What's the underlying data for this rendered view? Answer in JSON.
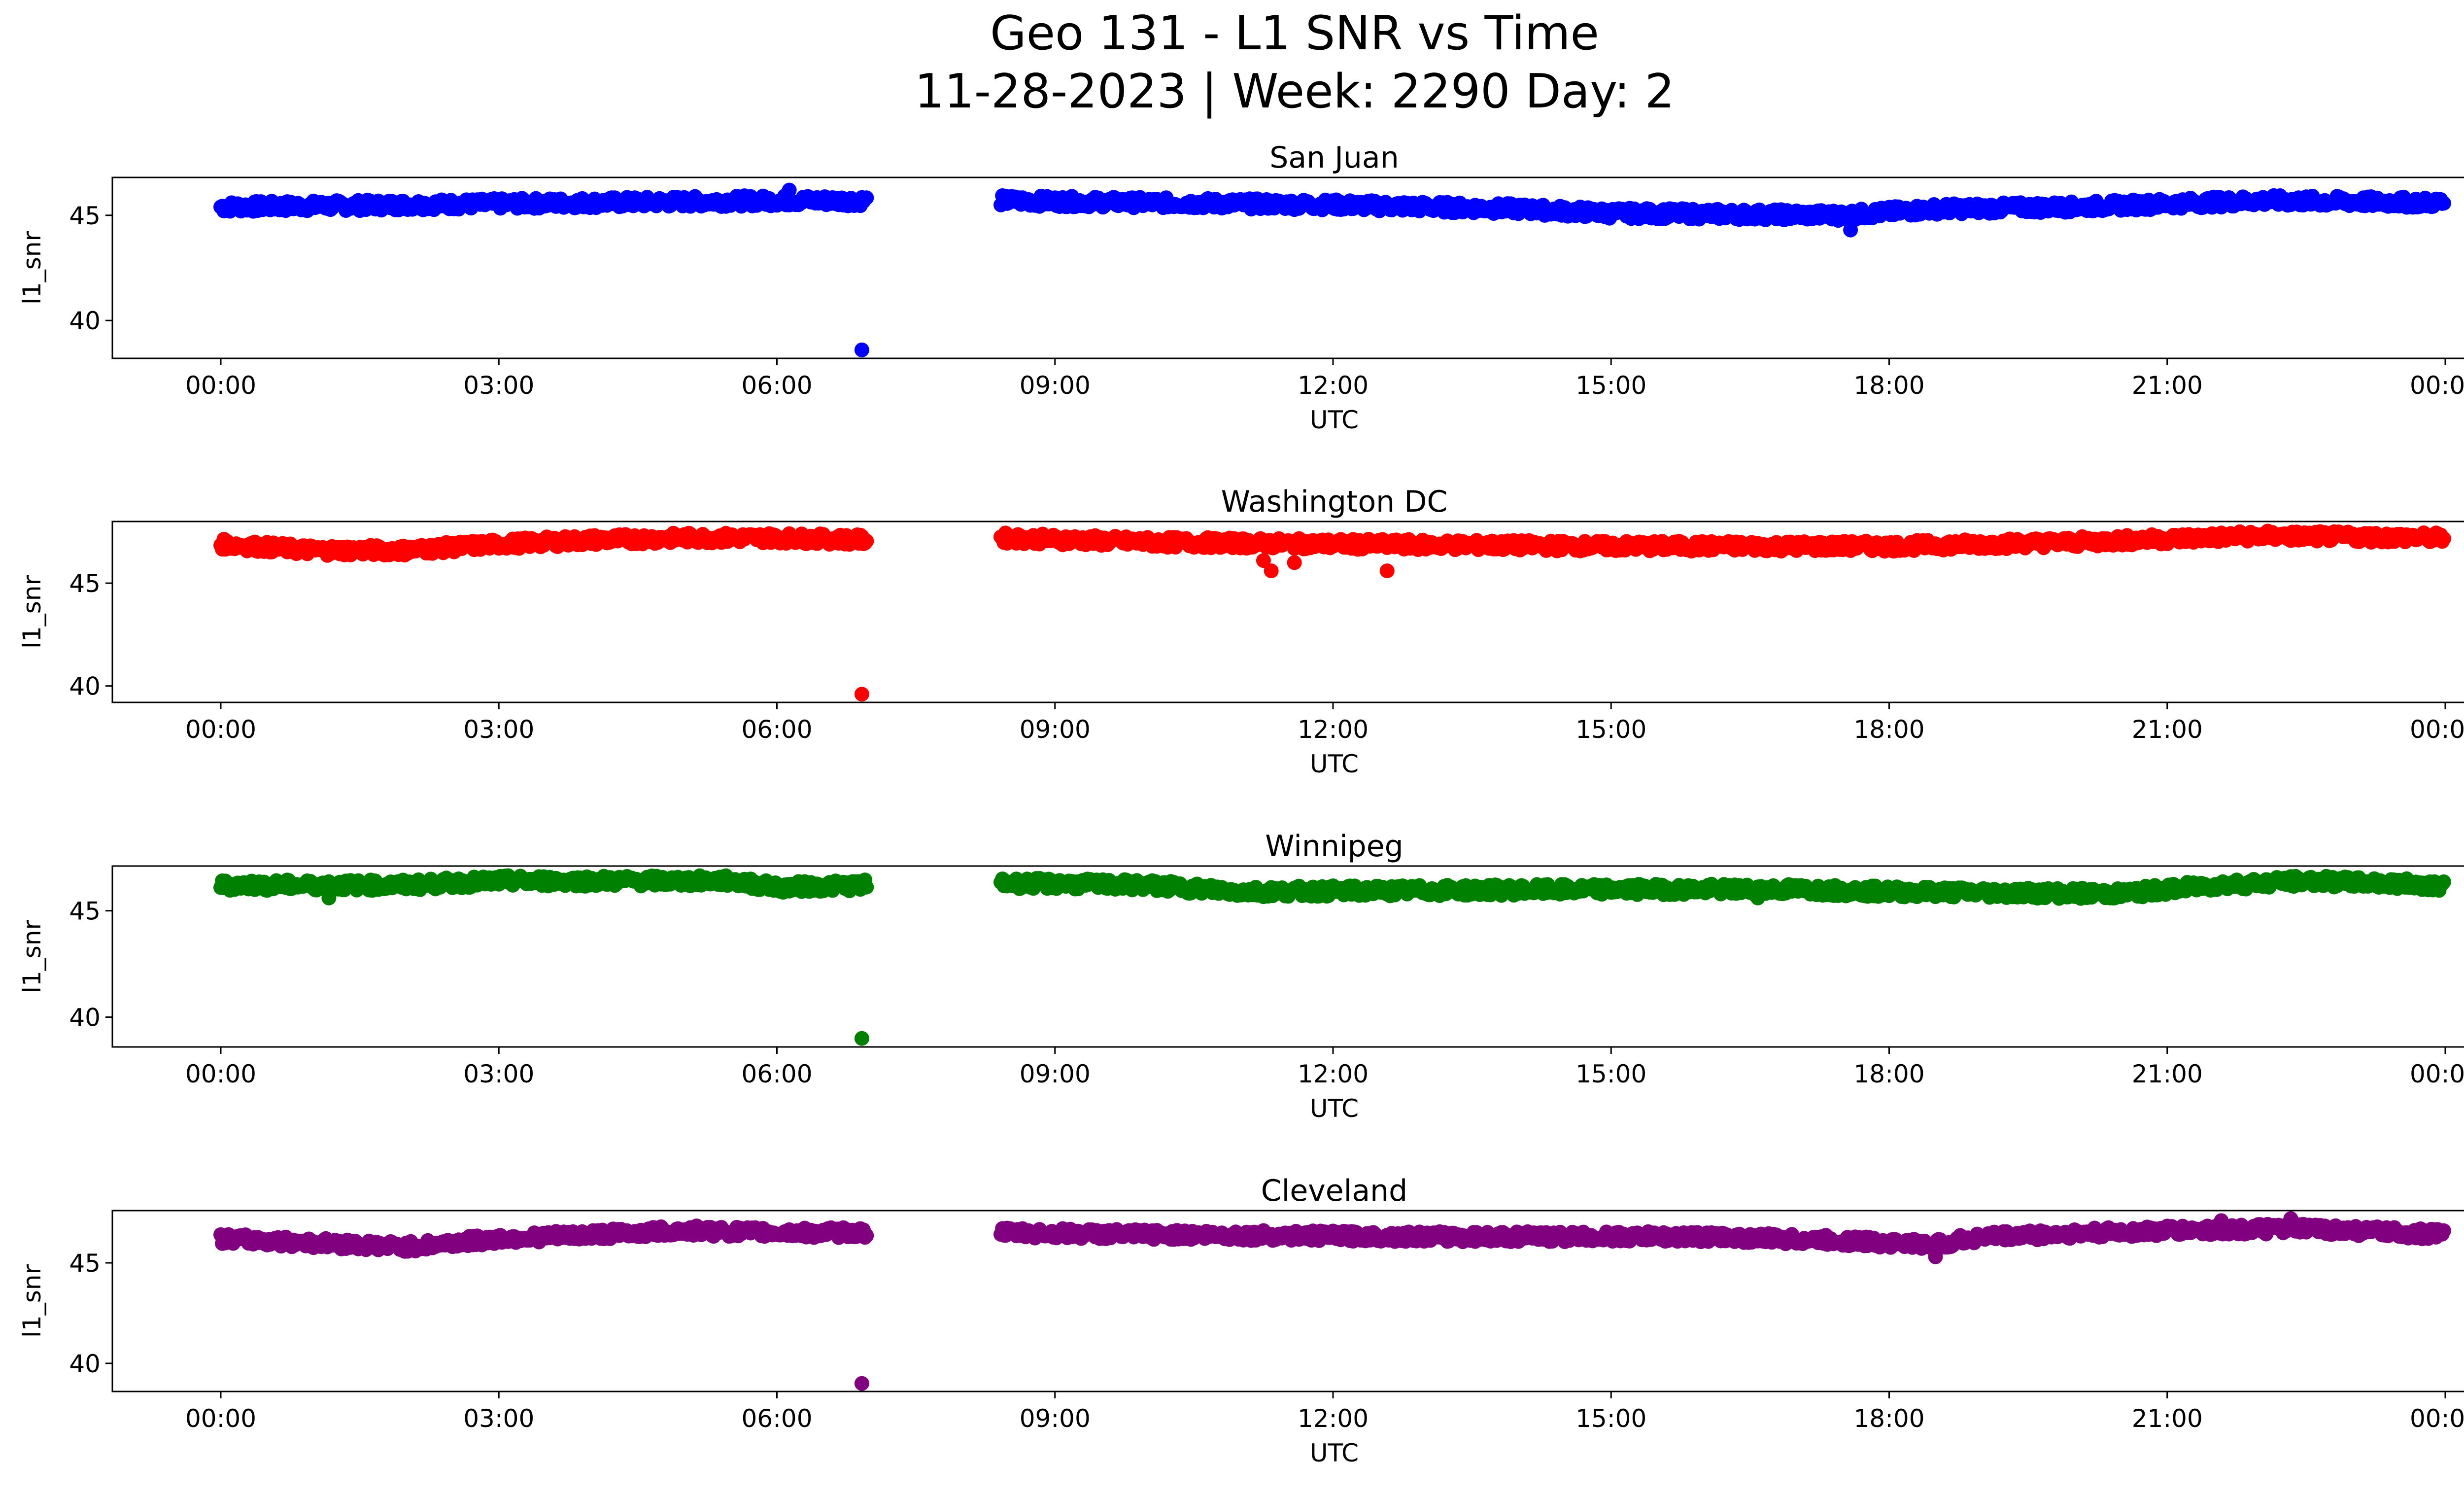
{
  "figure": {
    "title_line1": "Geo 131 - L1 SNR vs Time",
    "title_line2": "11-28-2023 | Week: 2290 Day: 2"
  },
  "chart_data": [
    {
      "type": "scatter",
      "title": "San Juan",
      "xlabel": "UTC",
      "ylabel": "l1_snr",
      "color": "#0000ff",
      "xlim": [
        "2023-11-28 00:00",
        "2023-11-29 00:00"
      ],
      "ylim": [
        38.2,
        46.8
      ],
      "x_ticks": [
        "00:00",
        "03:00",
        "06:00",
        "09:00",
        "12:00",
        "15:00",
        "18:00",
        "21:00",
        "00:00"
      ],
      "y_ticks": [
        40,
        45
      ],
      "gap": [
        "2023-11-28 06:58",
        "2023-11-28 08:25"
      ],
      "band": [
        [
          "00:00",
          45.4
        ],
        [
          "02:00",
          45.5
        ],
        [
          "04:00",
          45.6
        ],
        [
          "06:00",
          45.7
        ],
        [
          "06:58",
          45.7
        ],
        [
          "08:25",
          45.7
        ],
        [
          "10:00",
          45.6
        ],
        [
          "12:00",
          45.5
        ],
        [
          "14:00",
          45.3
        ],
        [
          "15:00",
          45.1
        ],
        [
          "17:30",
          45.0
        ],
        [
          "18:30",
          45.3
        ],
        [
          "20:00",
          45.4
        ],
        [
          "22:00",
          45.7
        ],
        [
          "23:59",
          45.6
        ]
      ],
      "outliers": [
        [
          "06:55",
          38.6
        ],
        [
          "17:35",
          44.3
        ],
        [
          "06:08",
          46.2
        ]
      ]
    },
    {
      "type": "scatter",
      "title": "Washington DC",
      "xlabel": "UTC",
      "ylabel": "l1_snr",
      "color": "#ff0000",
      "xlim": [
        "2023-11-28 00:00",
        "2023-11-29 00:00"
      ],
      "ylim": [
        39.2,
        48.0
      ],
      "x_ticks": [
        "00:00",
        "03:00",
        "06:00",
        "09:00",
        "12:00",
        "15:00",
        "18:00",
        "21:00",
        "00:00"
      ],
      "y_ticks": [
        40,
        45
      ],
      "gap": [
        "2023-11-28 06:58",
        "2023-11-28 08:25"
      ],
      "band": [
        [
          "00:00",
          46.9
        ],
        [
          "01:00",
          46.6
        ],
        [
          "02:00",
          46.6
        ],
        [
          "03:00",
          46.9
        ],
        [
          "04:00",
          47.1
        ],
        [
          "05:00",
          47.2
        ],
        [
          "06:00",
          47.2
        ],
        [
          "06:58",
          47.1
        ],
        [
          "08:25",
          47.2
        ],
        [
          "10:00",
          47.0
        ],
        [
          "12:00",
          46.9
        ],
        [
          "15:00",
          46.8
        ],
        [
          "18:00",
          46.8
        ],
        [
          "20:00",
          47.0
        ],
        [
          "22:00",
          47.3
        ],
        [
          "23:59",
          47.2
        ]
      ],
      "outliers": [
        [
          "06:55",
          39.6
        ],
        [
          "11:20",
          45.6
        ],
        [
          "12:35",
          45.6
        ],
        [
          "11:15",
          46.1
        ],
        [
          "11:35",
          46.0
        ]
      ]
    },
    {
      "type": "scatter",
      "title": "Winnipeg",
      "xlabel": "UTC",
      "ylabel": "l1_snr",
      "color": "#008000",
      "xlim": [
        "2023-11-28 00:00",
        "2023-11-29 00:00"
      ],
      "ylim": [
        38.6,
        47.1
      ],
      "x_ticks": [
        "00:00",
        "03:00",
        "06:00",
        "09:00",
        "12:00",
        "15:00",
        "18:00",
        "21:00",
        "00:00"
      ],
      "y_ticks": [
        40,
        45
      ],
      "gap": [
        "2023-11-28 06:58",
        "2023-11-28 08:25"
      ],
      "band": [
        [
          "00:00",
          46.2
        ],
        [
          "02:00",
          46.2
        ],
        [
          "03:00",
          46.4
        ],
        [
          "05:30",
          46.4
        ],
        [
          "06:00",
          46.1
        ],
        [
          "06:58",
          46.2
        ],
        [
          "08:25",
          46.3
        ],
        [
          "10:00",
          46.2
        ],
        [
          "11:00",
          45.9
        ],
        [
          "15:00",
          46.0
        ],
        [
          "17:00",
          46.0
        ],
        [
          "18:00",
          45.9
        ],
        [
          "20:30",
          45.8
        ],
        [
          "21:30",
          46.2
        ],
        [
          "22:30",
          46.4
        ],
        [
          "23:59",
          46.2
        ]
      ],
      "outliers": [
        [
          "06:55",
          39.0
        ],
        [
          "01:10",
          45.6
        ],
        [
          "16:35",
          45.6
        ]
      ]
    },
    {
      "type": "scatter",
      "title": "Cleveland",
      "xlabel": "UTC",
      "ylabel": "l1_snr",
      "color": "#800080",
      "xlim": [
        "2023-11-28 00:00",
        "2023-11-29 00:00"
      ],
      "ylim": [
        38.6,
        47.6
      ],
      "x_ticks": [
        "00:00",
        "03:00",
        "06:00",
        "09:00",
        "12:00",
        "15:00",
        "18:00",
        "21:00",
        "00:00"
      ],
      "y_ticks": [
        40,
        45
      ],
      "gap": [
        "2023-11-28 06:58",
        "2023-11-28 08:25"
      ],
      "band": [
        [
          "00:00",
          46.2
        ],
        [
          "01:00",
          46.0
        ],
        [
          "02:00",
          45.8
        ],
        [
          "03:00",
          46.2
        ],
        [
          "04:00",
          46.4
        ],
        [
          "05:00",
          46.6
        ],
        [
          "06:00",
          46.5
        ],
        [
          "06:58",
          46.5
        ],
        [
          "08:25",
          46.5
        ],
        [
          "10:00",
          46.4
        ],
        [
          "13:00",
          46.3
        ],
        [
          "16:00",
          46.3
        ],
        [
          "17:30",
          46.1
        ],
        [
          "18:30",
          45.9
        ],
        [
          "19:00",
          46.3
        ],
        [
          "21:00",
          46.6
        ],
        [
          "22:30",
          46.7
        ],
        [
          "23:59",
          46.4
        ]
      ],
      "outliers": [
        [
          "06:55",
          39.0
        ],
        [
          "18:30",
          45.3
        ],
        [
          "22:20",
          47.2
        ],
        [
          "21:35",
          47.1
        ]
      ]
    }
  ]
}
